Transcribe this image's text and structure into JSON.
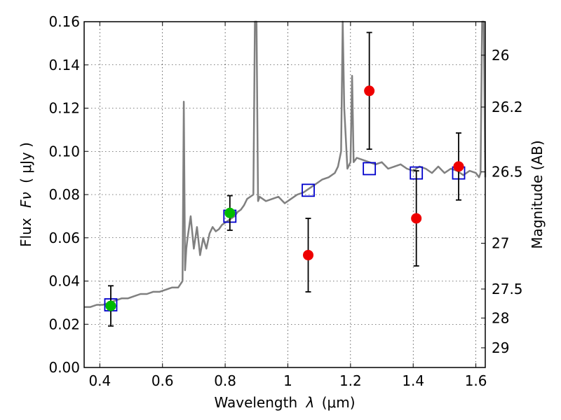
{
  "chart_data": {
    "type": "scatter",
    "xlabel_prefix": "Wavelength",
    "xlabel_symbol": "λ",
    "xlabel_unit": "(μm)",
    "ylabel_prefix": "Flux",
    "ylabel_symbol": "Fν",
    "ylabel_unit": "( μJy )",
    "y2label": "Magnitude (AB)",
    "xlim": [
      0.35,
      1.63
    ],
    "ylim": [
      0.0,
      0.16
    ],
    "grid": true,
    "x_ticks": [
      0.4,
      0.6,
      0.8,
      1.0,
      1.2,
      1.4,
      1.6
    ],
    "x_tick_labels": [
      "0.4",
      "0.6",
      "0.8",
      "1",
      "1.2",
      "1.4",
      "1.6"
    ],
    "y_ticks": [
      0.0,
      0.02,
      0.04,
      0.06,
      0.08,
      0.1,
      0.12,
      0.14,
      0.16
    ],
    "y_tick_labels": [
      "0.00",
      "0.02",
      "0.04",
      "0.06",
      "0.08",
      "0.10",
      "0.12",
      "0.14",
      "0.16"
    ],
    "y2_ticks": [
      {
        "label": "26",
        "flux": 0.1445
      },
      {
        "label": "26.2",
        "flux": 0.1205
      },
      {
        "label": "26.5",
        "flux": 0.0905
      },
      {
        "label": "27",
        "flux": 0.0575
      },
      {
        "label": "27.5",
        "flux": 0.0363
      },
      {
        "label": "28",
        "flux": 0.0229
      },
      {
        "label": "29",
        "flux": 0.0091
      }
    ],
    "series": [
      {
        "name": "model-spectrum",
        "kind": "line",
        "color": "#808080",
        "x": [
          0.35,
          0.37,
          0.39,
          0.41,
          0.43,
          0.45,
          0.47,
          0.49,
          0.51,
          0.53,
          0.55,
          0.57,
          0.59,
          0.61,
          0.63,
          0.65,
          0.664,
          0.668,
          0.672,
          0.676,
          0.68,
          0.69,
          0.7,
          0.71,
          0.72,
          0.73,
          0.74,
          0.75,
          0.76,
          0.77,
          0.78,
          0.79,
          0.8,
          0.81,
          0.82,
          0.83,
          0.84,
          0.85,
          0.86,
          0.87,
          0.88,
          0.89,
          0.895,
          0.9,
          0.905,
          0.91,
          0.93,
          0.95,
          0.97,
          0.99,
          1.01,
          1.03,
          1.05,
          1.07,
          1.09,
          1.11,
          1.13,
          1.15,
          1.16,
          1.17,
          1.175,
          1.18,
          1.19,
          1.2,
          1.205,
          1.21,
          1.22,
          1.24,
          1.26,
          1.28,
          1.3,
          1.32,
          1.34,
          1.36,
          1.38,
          1.4,
          1.42,
          1.44,
          1.46,
          1.48,
          1.5,
          1.52,
          1.54,
          1.56,
          1.58,
          1.6,
          1.61,
          1.615,
          1.62,
          1.625,
          1.63
        ],
        "y": [
          0.028,
          0.028,
          0.029,
          0.029,
          0.03,
          0.031,
          0.032,
          0.032,
          0.033,
          0.034,
          0.034,
          0.035,
          0.035,
          0.036,
          0.037,
          0.037,
          0.04,
          0.123,
          0.045,
          0.055,
          0.06,
          0.07,
          0.055,
          0.065,
          0.052,
          0.06,
          0.055,
          0.062,
          0.065,
          0.063,
          0.064,
          0.066,
          0.067,
          0.068,
          0.069,
          0.07,
          0.072,
          0.073,
          0.075,
          0.078,
          0.079,
          0.08,
          0.16,
          0.16,
          0.077,
          0.079,
          0.077,
          0.078,
          0.079,
          0.076,
          0.078,
          0.08,
          0.081,
          0.083,
          0.085,
          0.087,
          0.088,
          0.09,
          0.093,
          0.1,
          0.16,
          0.12,
          0.092,
          0.095,
          0.135,
          0.095,
          0.097,
          0.096,
          0.095,
          0.094,
          0.095,
          0.092,
          0.093,
          0.094,
          0.092,
          0.091,
          0.093,
          0.092,
          0.09,
          0.093,
          0.09,
          0.092,
          0.091,
          0.089,
          0.091,
          0.09,
          0.088,
          0.09,
          0.16,
          0.16,
          0.088
        ]
      },
      {
        "name": "model-photometry",
        "kind": "open-square",
        "color": "#0000cc",
        "x": [
          0.435,
          0.815,
          1.065,
          1.26,
          1.41,
          1.545
        ],
        "y": [
          0.029,
          0.07,
          0.082,
          0.092,
          0.09,
          0.09
        ]
      },
      {
        "name": "observed-green",
        "kind": "filled-circle",
        "color": "#00bb00",
        "x": [
          0.435,
          0.815
        ],
        "y": [
          0.0285,
          0.0715
        ],
        "err": [
          0.0093,
          0.008
        ]
      },
      {
        "name": "observed-red",
        "kind": "filled-circle",
        "color": "#ee0000",
        "x": [
          1.065,
          1.26,
          1.41,
          1.545
        ],
        "y": [
          0.052,
          0.128,
          0.069,
          0.093
        ],
        "err": [
          0.017,
          0.027,
          0.022,
          0.0155
        ]
      }
    ]
  }
}
